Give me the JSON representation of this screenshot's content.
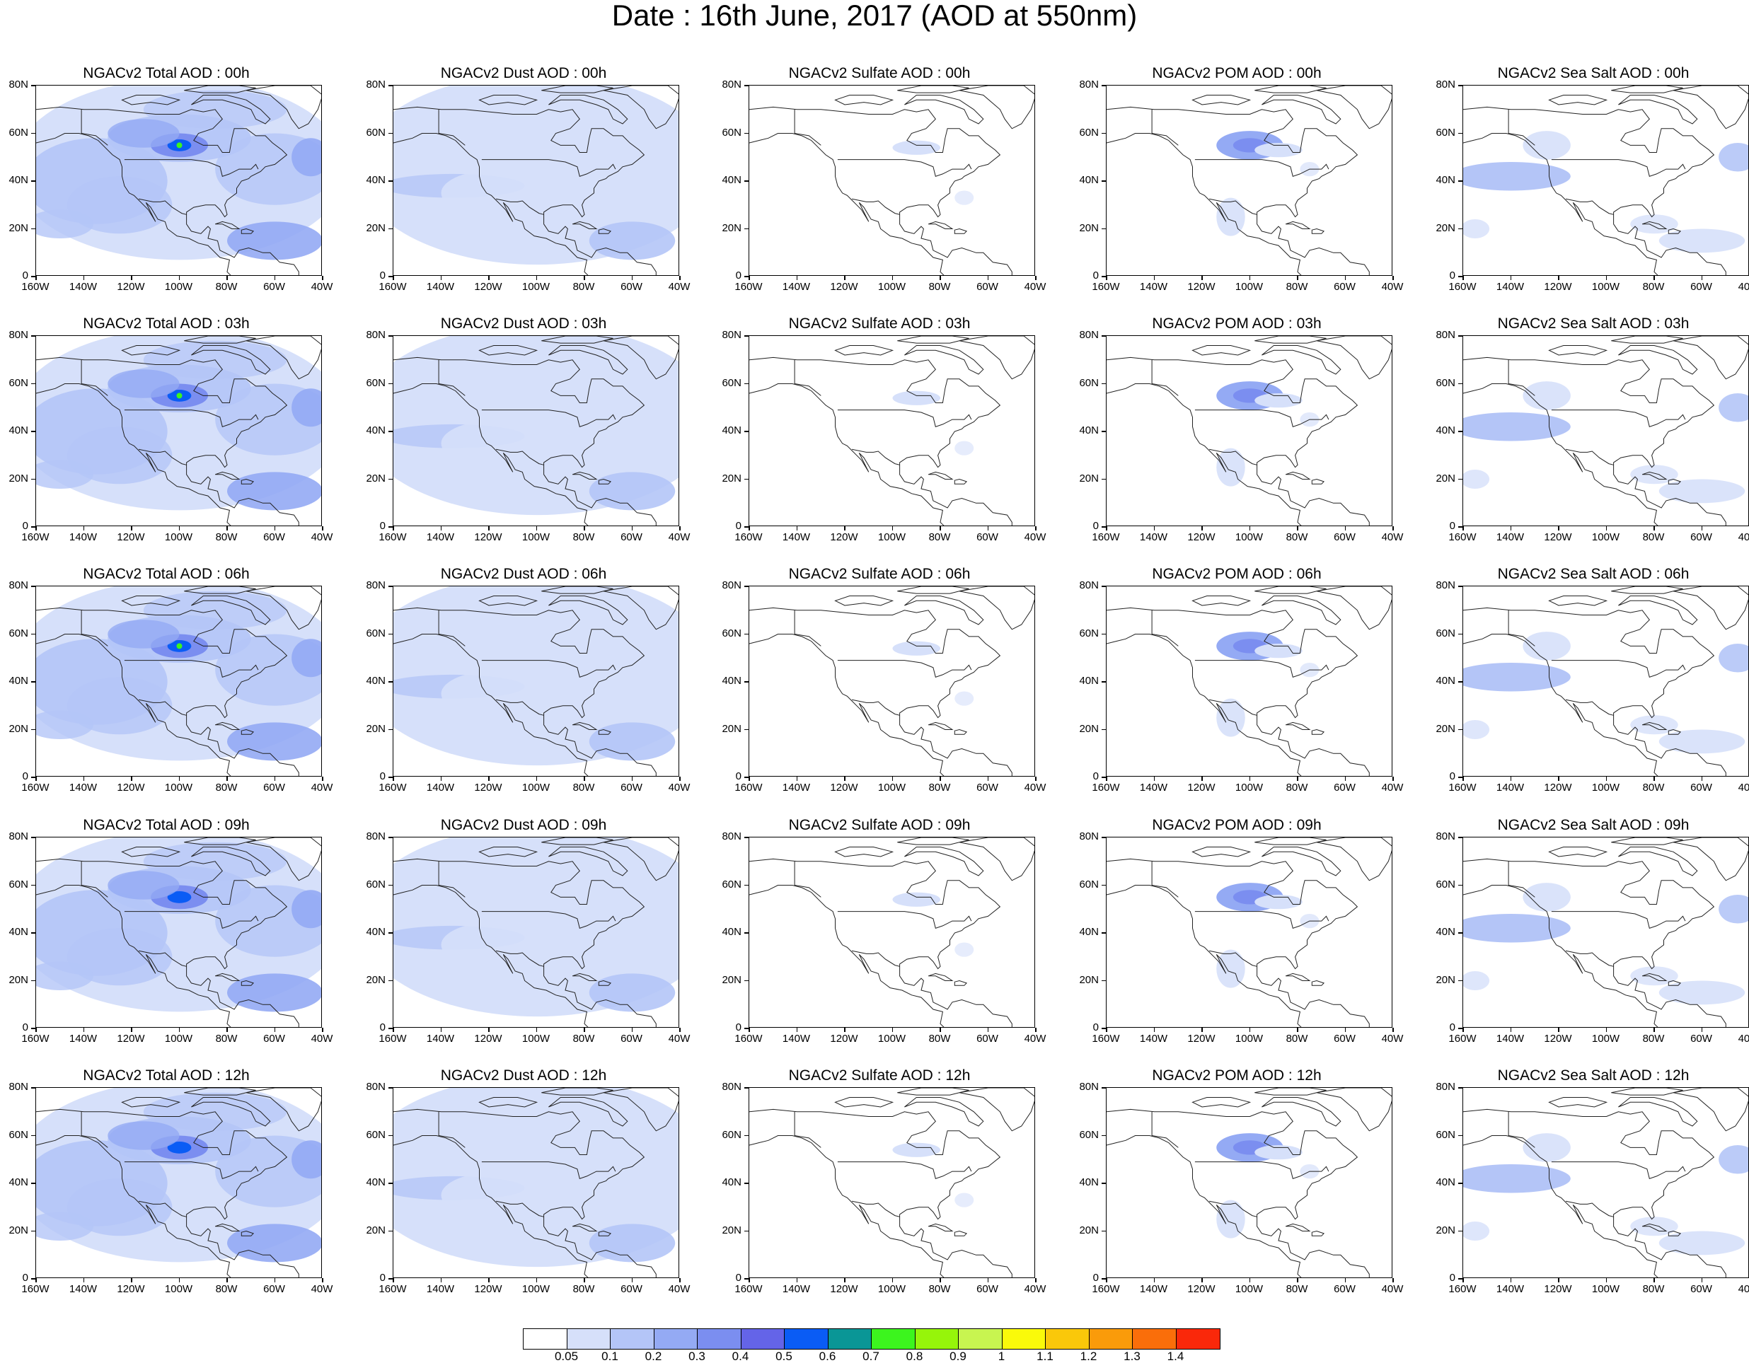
{
  "title": "Date : 16th June, 2017 (AOD at 550nm)",
  "rows": [
    {
      "titles": [
        "NGACv2 Total AOD : 00h",
        "NGACv2 Dust AOD : 00h",
        "NGACv2 Sulfate AOD : 00h",
        "NGACv2 POM AOD : 00h",
        "NGACv2 Sea Salt AOD : 00h"
      ]
    },
    {
      "titles": [
        "NGACv2 Total AOD : 03h",
        "NGACv2 Dust AOD : 03h",
        "NGACv2 Sulfate AOD : 03h",
        "NGACv2 POM AOD : 03h",
        "NGACv2 Sea Salt AOD : 03h"
      ]
    },
    {
      "titles": [
        "NGACv2 Total AOD : 06h",
        "NGACv2 Dust AOD : 06h",
        "NGACv2 Sulfate AOD : 06h",
        "NGACv2 POM AOD : 06h",
        "NGACv2 Sea Salt AOD : 06h"
      ]
    },
    {
      "titles": [
        "NGACv2 Total AOD : 09h",
        "NGACv2 Dust AOD : 09h",
        "NGACv2 Sulfate AOD : 09h",
        "NGACv2 POM AOD : 09h",
        "NGACv2 Sea Salt  AOD : 09h"
      ]
    },
    {
      "titles": [
        "NGACv2 Total AOD  : 12h",
        "NGACv2 Dust AOD : 12h",
        "NGACv2 Sulfate AOD : 12h",
        "NGACv2 POM  AOD : 12h",
        "NGACv2 Sea Salt  AOD : 12h"
      ]
    }
  ],
  "species": [
    "total",
    "dust",
    "sulfate",
    "pom",
    "seasalt"
  ],
  "y_ticks": [
    "80N",
    "60N",
    "40N",
    "20N",
    "0"
  ],
  "x_ticks": [
    "160W",
    "140W",
    "120W",
    "100W",
    "80W",
    "60W",
    "40W"
  ],
  "lon_range": [
    -160,
    -40
  ],
  "lat_range": [
    0,
    80
  ],
  "colorbar": {
    "colors": [
      "#ffffff",
      "#d6e0fa",
      "#b4c5f7",
      "#94aaf4",
      "#7b8ef0",
      "#6464e8",
      "#0a5cf5",
      "#0a9696",
      "#3cf51e",
      "#96f50a",
      "#c8f550",
      "#fafa0a",
      "#fac80a",
      "#fa9b0a",
      "#fa6e0a",
      "#fa280a"
    ],
    "labels": [
      "0.05",
      "0.1",
      "0.2",
      "0.3",
      "0.4",
      "0.5",
      "0.6",
      "0.7",
      "0.8",
      "0.9",
      "1",
      "1.1",
      "1.2",
      "1.3",
      "1.4"
    ]
  }
}
